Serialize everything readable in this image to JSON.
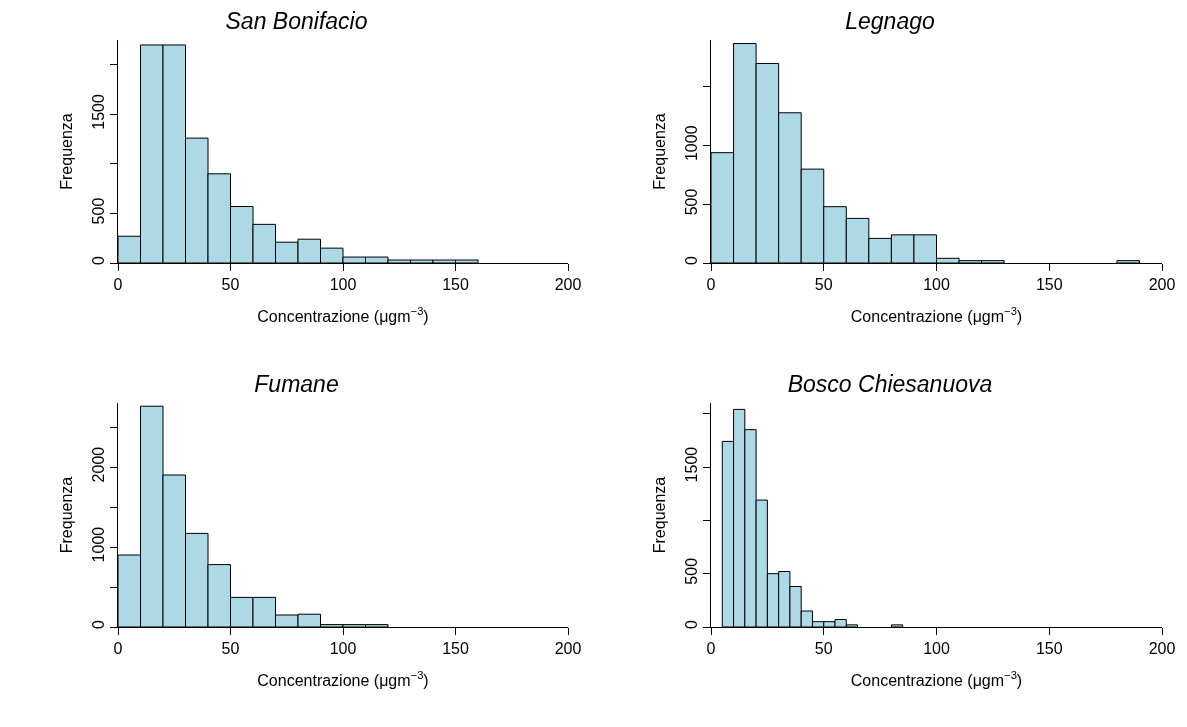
{
  "chart_data": [
    {
      "type": "histogram",
      "title": "San Bonifacio",
      "xlabel": "Concentrazione (μgm$^{−3}$)",
      "ylabel": "Frequenza",
      "color": "#add8e6",
      "bins": [
        0,
        10,
        20,
        30,
        40,
        50,
        60,
        70,
        80,
        90,
        100,
        110,
        120,
        130,
        140,
        150,
        160
      ],
      "values": [
        270,
        2200,
        2200,
        1260,
        900,
        570,
        390,
        210,
        240,
        150,
        60,
        60,
        30,
        30,
        30,
        30
      ],
      "xlim": [
        0,
        200
      ],
      "xticks": [
        0,
        50,
        100,
        150,
        200
      ],
      "ylim": [
        0,
        2250
      ],
      "yticks": [
        0,
        500,
        {
          "value": 1000,
          "label": null
        },
        1500,
        {
          "value": 2000,
          "label": null
        }
      ]
    },
    {
      "type": "histogram",
      "title": "Legnago",
      "xlabel": "Concentrazione (μgm$^{−3}$)",
      "ylabel": "Frequenza",
      "color": "#add8e6",
      "bins": [
        0,
        10,
        20,
        30,
        40,
        50,
        60,
        70,
        80,
        90,
        100,
        110,
        120,
        130,
        140,
        150,
        160,
        170,
        180,
        190
      ],
      "values": [
        940,
        1870,
        1700,
        1280,
        800,
        480,
        380,
        210,
        240,
        240,
        40,
        20,
        20,
        0,
        0,
        0,
        0,
        0,
        20
      ],
      "xlim": [
        0,
        200
      ],
      "xticks": [
        0,
        50,
        100,
        150,
        200
      ],
      "ylim": [
        0,
        1900
      ],
      "yticks": [
        0,
        500,
        1000,
        {
          "value": 1500,
          "label": null
        }
      ]
    },
    {
      "type": "histogram",
      "title": "Fumane",
      "xlabel": "Concentrazione (μgm$^{−3}$)",
      "ylabel": "Frequenza",
      "color": "#add8e6",
      "bins": [
        0,
        10,
        20,
        30,
        40,
        50,
        60,
        70,
        80,
        90,
        100,
        110,
        120
      ],
      "values": [
        900,
        2760,
        1900,
        1170,
        780,
        370,
        370,
        150,
        160,
        30,
        30,
        30
      ],
      "xlim": [
        0,
        200
      ],
      "xticks": [
        0,
        50,
        100,
        150,
        200
      ],
      "ylim": [
        0,
        2800
      ],
      "yticks": [
        0,
        {
          "value": 500,
          "label": null
        },
        1000,
        {
          "value": 1500,
          "label": null
        },
        2000,
        {
          "value": 2500,
          "label": null
        }
      ]
    },
    {
      "type": "histogram",
      "title": "Bosco Chiesanuova",
      "xlabel": "Concentrazione (μgm$^{−3}$)",
      "ylabel": "Frequenza",
      "color": "#add8e6",
      "bins": [
        5,
        10,
        15,
        20,
        25,
        30,
        35,
        40,
        45,
        50,
        55,
        60,
        65,
        70,
        75,
        80,
        85
      ],
      "values": [
        1740,
        2040,
        1850,
        1190,
        500,
        520,
        380,
        150,
        50,
        50,
        70,
        20,
        0,
        0,
        0,
        20
      ],
      "xlim": [
        0,
        200
      ],
      "xticks": [
        0,
        50,
        100,
        150,
        200
      ],
      "ylim": [
        0,
        2100
      ],
      "yticks": [
        0,
        500,
        {
          "value": 1000,
          "label": null
        },
        1500,
        {
          "value": 2000,
          "label": null
        }
      ]
    }
  ]
}
